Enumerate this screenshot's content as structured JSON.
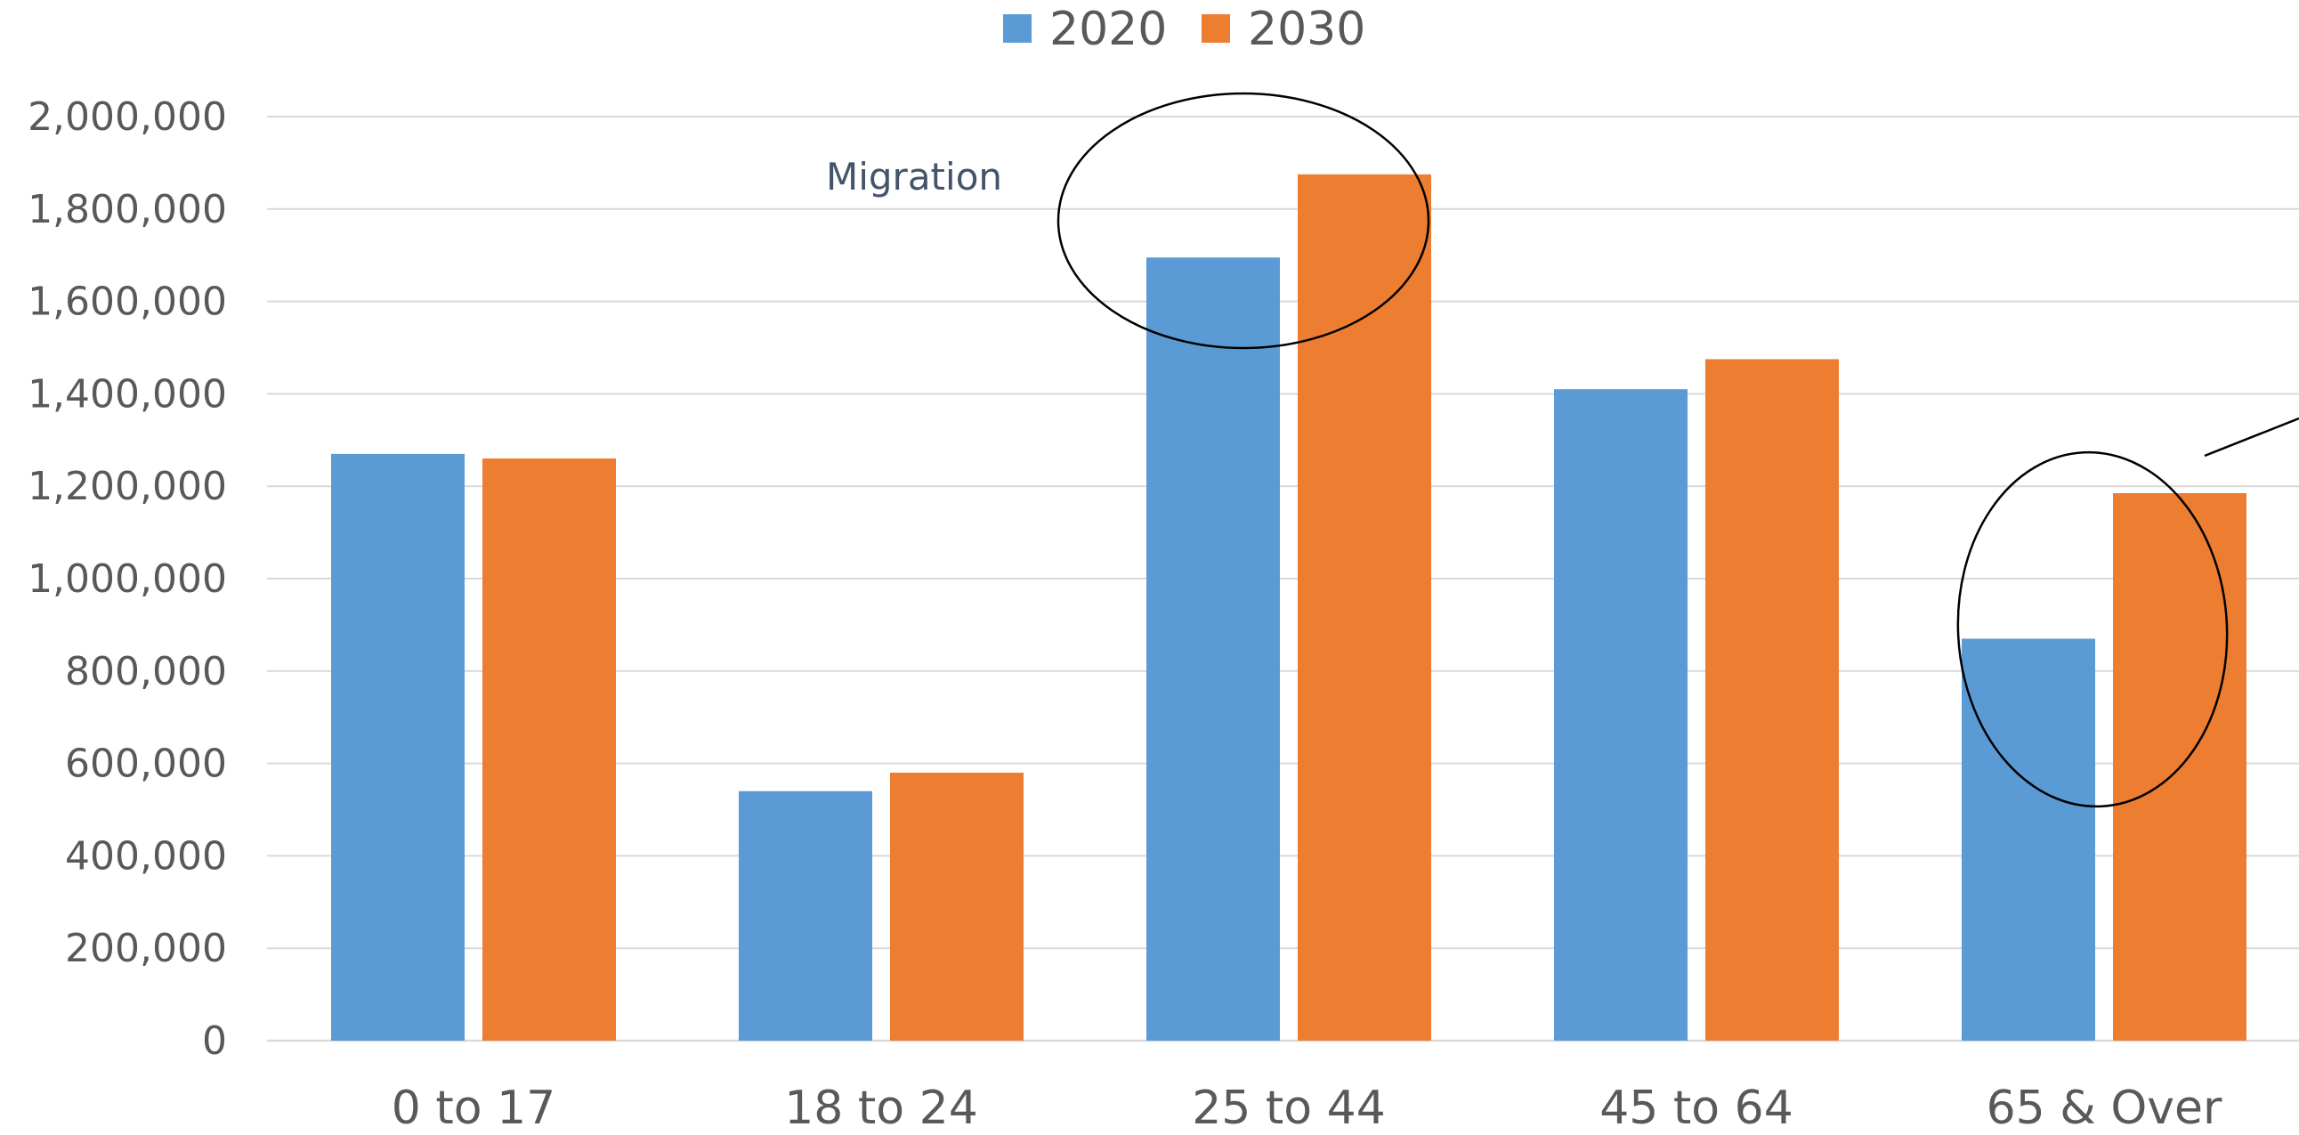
{
  "chart_data": {
    "type": "bar",
    "title": "",
    "xlabel": "",
    "ylabel": "",
    "categories": [
      "0 to 17",
      "18 to 24",
      "25 to 44",
      "45 to 64",
      "65 & Over"
    ],
    "series": [
      {
        "name": "2020",
        "color": "#5b9bd5",
        "values": [
          1270000,
          540000,
          1695000,
          1410000,
          870000
        ]
      },
      {
        "name": "2030",
        "color": "#ed7d31",
        "values": [
          1260000,
          580000,
          1875000,
          1475000,
          1185000
        ]
      }
    ],
    "ylim": [
      0,
      2000000
    ],
    "yticks": [
      0,
      200000,
      400000,
      600000,
      800000,
      1000000,
      1200000,
      1400000,
      1600000,
      1800000,
      2000000
    ],
    "ytick_labels": [
      "0",
      "200,000",
      "400,000",
      "600,000",
      "800,000",
      "1,000,000",
      "1,200,000",
      "1,400,000",
      "1,600,000",
      "1,800,000",
      "2,000,000"
    ],
    "grid": true,
    "legend_position": "top-center",
    "annotations": [
      {
        "text": "Migration",
        "target_category": "25 to 44"
      }
    ],
    "highlighted_categories": [
      "25 to 44",
      "65 & Over"
    ]
  }
}
